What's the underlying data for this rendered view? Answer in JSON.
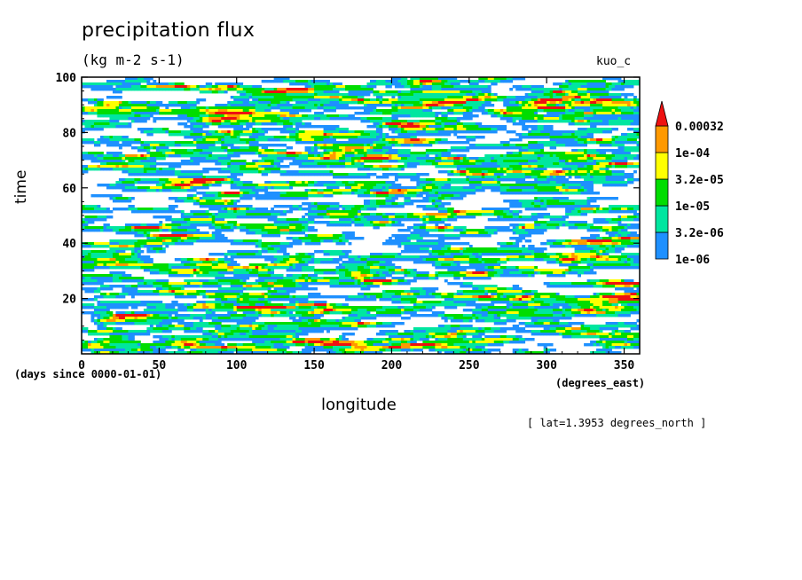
{
  "chart_data": {
    "type": "heatmap",
    "title": "precipitation flux",
    "units": "(kg m-2 s-1)",
    "run_label": "kuo_c",
    "xlabel": "longitude",
    "ylabel": "time",
    "x_units": "(degrees_east)",
    "y_units": "(days since 0000-01-01)",
    "footnote": "[ lat=1.3953 degrees_north ]",
    "xlim": [
      0,
      360
    ],
    "ylim": [
      0,
      100
    ],
    "x_ticks": [
      0,
      50,
      100,
      150,
      200,
      250,
      300,
      350
    ],
    "y_ticks": [
      20,
      40,
      60,
      80,
      100
    ],
    "levels": [
      {
        "label": "1e-06",
        "color": "#1e90ff"
      },
      {
        "label": "3.2e-06",
        "color": "#00e6a0"
      },
      {
        "label": "1e-05",
        "color": "#00dd00"
      },
      {
        "label": "3.2e-05",
        "color": "#ffff00"
      },
      {
        "label": "1e-04",
        "color": "#ff9900"
      },
      {
        "label": "0.00032",
        "color": "#ee1111"
      }
    ]
  }
}
